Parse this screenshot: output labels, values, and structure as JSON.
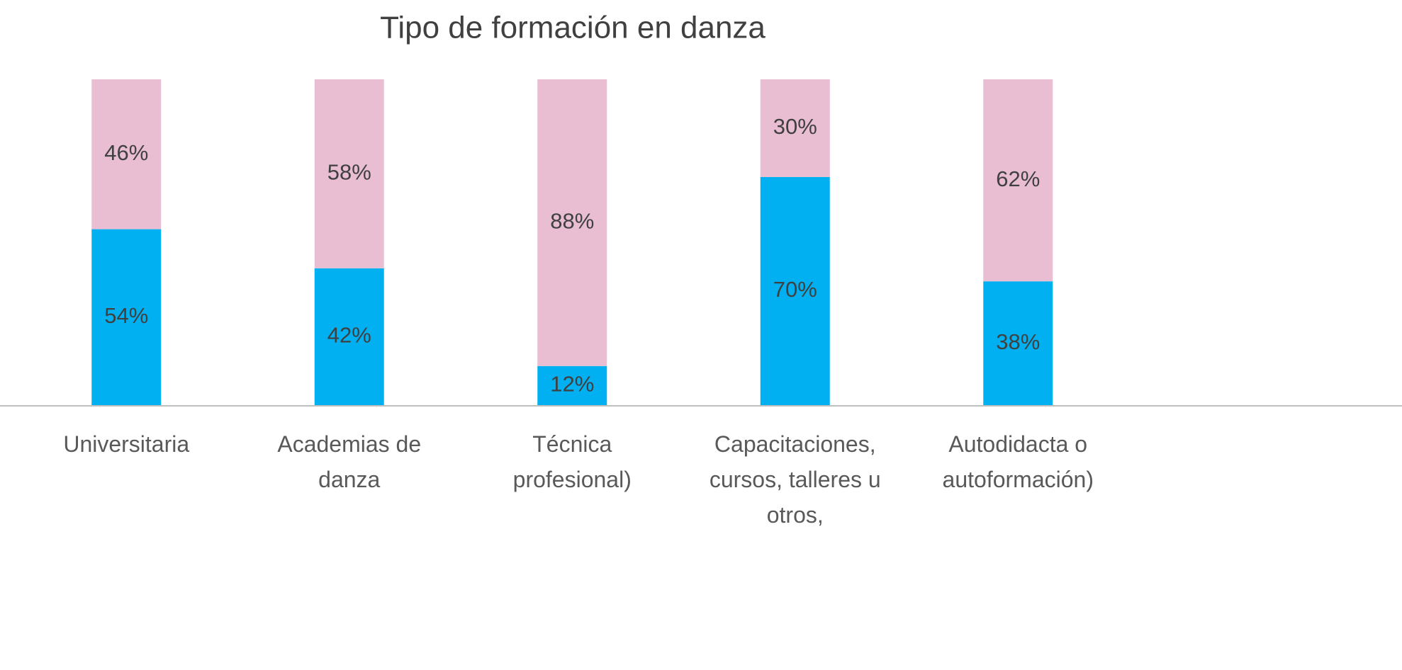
{
  "chart_data": {
    "type": "stacked_bar",
    "title": "Tipo de formación en danza",
    "categories": [
      "Universitaria",
      "Academias de danza",
      "Técnica profesional)",
      "Capacitaciones, cursos, talleres u otros,",
      "Autodidacta o autoformación)"
    ],
    "series": [
      {
        "color": "#00b0f0",
        "values": [
          54,
          42,
          12,
          70,
          38
        ],
        "value_labels": [
          "54%",
          "42%",
          "12%",
          "70%",
          "38%"
        ]
      },
      {
        "color": "#e9bed3",
        "values": [
          46,
          58,
          88,
          30,
          62
        ],
        "value_labels": [
          "46%",
          "58%",
          "88%",
          "30%",
          "62%"
        ]
      }
    ],
    "ylim": [
      0,
      100
    ]
  }
}
